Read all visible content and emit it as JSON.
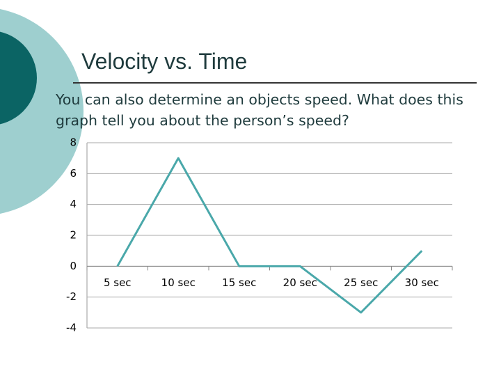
{
  "title": "Velocity vs. Time",
  "body": "You can also determine an objects speed.  What does this graph tell you about the person’s speed?",
  "chart_data": {
    "type": "line",
    "categories": [
      "5 sec",
      "10 sec",
      "15 sec",
      "20 sec",
      "25 sec",
      "30 sec"
    ],
    "values": [
      0,
      7,
      0,
      0,
      -3,
      1
    ],
    "color": "#4aa8aa",
    "ylim": [
      -4,
      8
    ],
    "yticks": [
      -4,
      -2,
      0,
      2,
      4,
      6,
      8
    ],
    "grid": true
  }
}
